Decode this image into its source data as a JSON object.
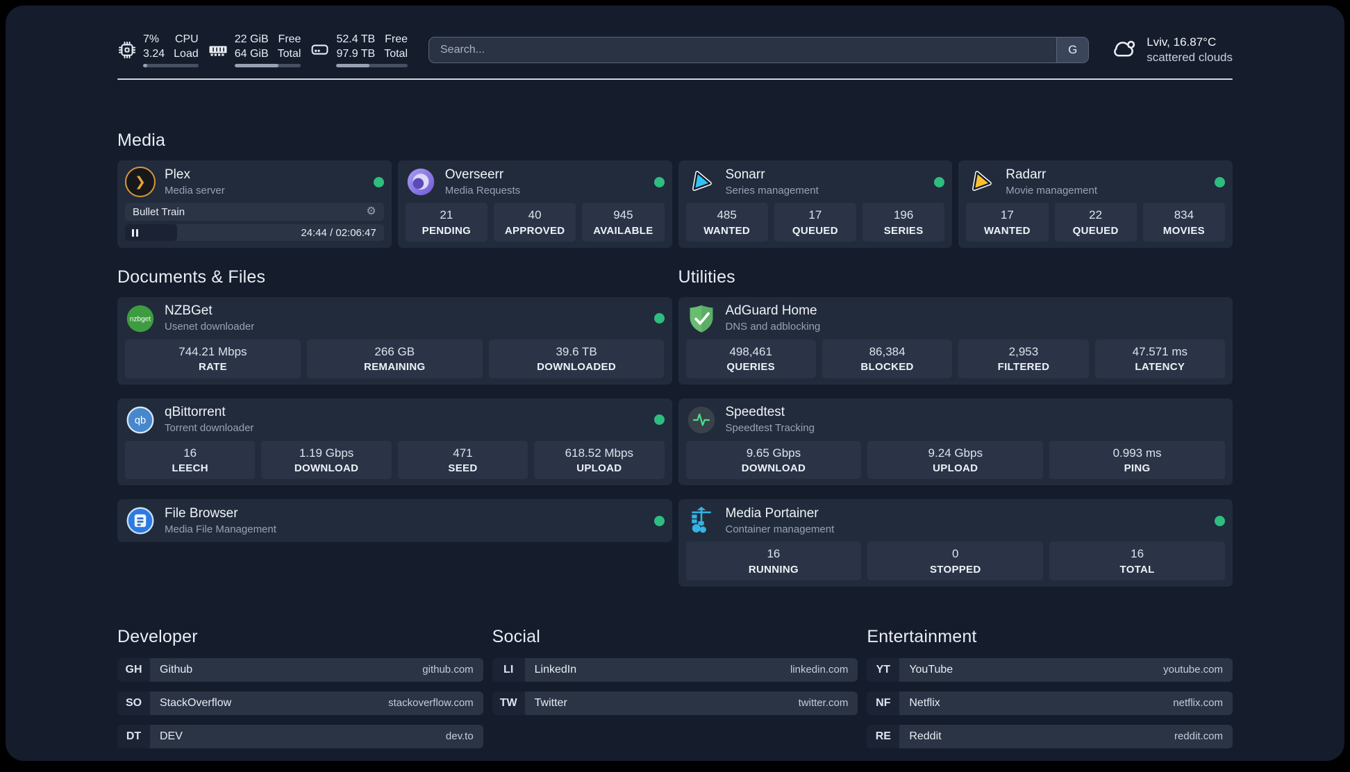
{
  "header": {
    "system": [
      {
        "id": "cpu",
        "value1": "7%",
        "value2": "3.24",
        "label1": "CPU",
        "label2": "Load",
        "progress_pct": 7
      },
      {
        "id": "memory",
        "value1": "22 GiB",
        "value2": "64 GiB",
        "label1": "Free",
        "label2": "Total",
        "progress_pct": 66
      },
      {
        "id": "storage",
        "value1": "52.4 TB",
        "value2": "97.9 TB",
        "label1": "Free",
        "label2": "Total",
        "progress_pct": 46
      }
    ],
    "search": {
      "placeholder": "Search...",
      "button_label": "G"
    },
    "weather": {
      "location_temp": "Lviv, 16.87°C",
      "condition": "scattered clouds"
    }
  },
  "sections": {
    "media": {
      "title": "Media",
      "cards": {
        "plex": {
          "title": "Plex",
          "subtitle": "Media server",
          "online": true,
          "player": {
            "track": "Bullet Train",
            "time": "24:44 / 02:06:47",
            "progress_pct": 20
          }
        },
        "overseerr": {
          "title": "Overseerr",
          "subtitle": "Media Requests",
          "online": true,
          "stats": [
            {
              "value": "21",
              "label": "PENDING"
            },
            {
              "value": "40",
              "label": "APPROVED"
            },
            {
              "value": "945",
              "label": "AVAILABLE"
            }
          ]
        },
        "sonarr": {
          "title": "Sonarr",
          "subtitle": "Series management",
          "online": true,
          "stats": [
            {
              "value": "485",
              "label": "WANTED"
            },
            {
              "value": "17",
              "label": "QUEUED"
            },
            {
              "value": "196",
              "label": "SERIES"
            }
          ]
        },
        "radarr": {
          "title": "Radarr",
          "subtitle": "Movie management",
          "online": true,
          "stats": [
            {
              "value": "17",
              "label": "WANTED"
            },
            {
              "value": "22",
              "label": "QUEUED"
            },
            {
              "value": "834",
              "label": "MOVIES"
            }
          ]
        }
      }
    },
    "documents": {
      "title": "Documents & Files",
      "cards": {
        "nzbget": {
          "title": "NZBGet",
          "subtitle": "Usenet downloader",
          "online": true,
          "stats": [
            {
              "value": "744.21 Mbps",
              "label": "RATE"
            },
            {
              "value": "266 GB",
              "label": "REMAINING"
            },
            {
              "value": "39.6 TB",
              "label": "DOWNLOADED"
            }
          ]
        },
        "qbittorrent": {
          "title": "qBittorrent",
          "subtitle": "Torrent downloader",
          "online": true,
          "stats": [
            {
              "value": "16",
              "label": "LEECH"
            },
            {
              "value": "1.19 Gbps",
              "label": "DOWNLOAD"
            },
            {
              "value": "471",
              "label": "SEED"
            },
            {
              "value": "618.52 Mbps",
              "label": "UPLOAD"
            }
          ]
        },
        "filebrowser": {
          "title": "File Browser",
          "subtitle": "Media File Management",
          "online": true
        }
      }
    },
    "utilities": {
      "title": "Utilities",
      "cards": {
        "adguard": {
          "title": "AdGuard Home",
          "subtitle": "DNS and adblocking",
          "online": false,
          "stats": [
            {
              "value": "498,461",
              "label": "QUERIES"
            },
            {
              "value": "86,384",
              "label": "BLOCKED"
            },
            {
              "value": "2,953",
              "label": "FILTERED"
            },
            {
              "value": "47.571 ms",
              "label": "LATENCY"
            }
          ]
        },
        "speedtest": {
          "title": "Speedtest",
          "subtitle": "Speedtest Tracking",
          "online": false,
          "stats": [
            {
              "value": "9.65 Gbps",
              "label": "DOWNLOAD"
            },
            {
              "value": "9.24 Gbps",
              "label": "UPLOAD"
            },
            {
              "value": "0.993 ms",
              "label": "PING"
            }
          ]
        },
        "portainer": {
          "title": "Media Portainer",
          "subtitle": "Container management",
          "online": true,
          "stats": [
            {
              "value": "16",
              "label": "RUNNING"
            },
            {
              "value": "0",
              "label": "STOPPED"
            },
            {
              "value": "16",
              "label": "TOTAL"
            }
          ]
        }
      }
    }
  },
  "bookmarks": [
    {
      "title": "Developer",
      "links": [
        {
          "abbr": "GH",
          "name": "Github",
          "url": "github.com"
        },
        {
          "abbr": "SO",
          "name": "StackOverflow",
          "url": "stackoverflow.com"
        },
        {
          "abbr": "DT",
          "name": "DEV",
          "url": "dev.to"
        }
      ]
    },
    {
      "title": "Social",
      "links": [
        {
          "abbr": "LI",
          "name": "LinkedIn",
          "url": "linkedin.com"
        },
        {
          "abbr": "TW",
          "name": "Twitter",
          "url": "twitter.com"
        }
      ]
    },
    {
      "title": "Entertainment",
      "links": [
        {
          "abbr": "YT",
          "name": "YouTube",
          "url": "youtube.com"
        },
        {
          "abbr": "NF",
          "name": "Netflix",
          "url": "netflix.com"
        },
        {
          "abbr": "RE",
          "name": "Reddit",
          "url": "reddit.com"
        }
      ]
    }
  ],
  "colors": {
    "accent_green": "#2ebd7f",
    "plex_gold": "#e5a339",
    "sonarr_blue": "#2fc3f3",
    "radarr_gold": "#fbbf2d",
    "page_bg": "#151c2c",
    "card_bg": "#212b3b",
    "tile_bg": "#2a3446"
  }
}
